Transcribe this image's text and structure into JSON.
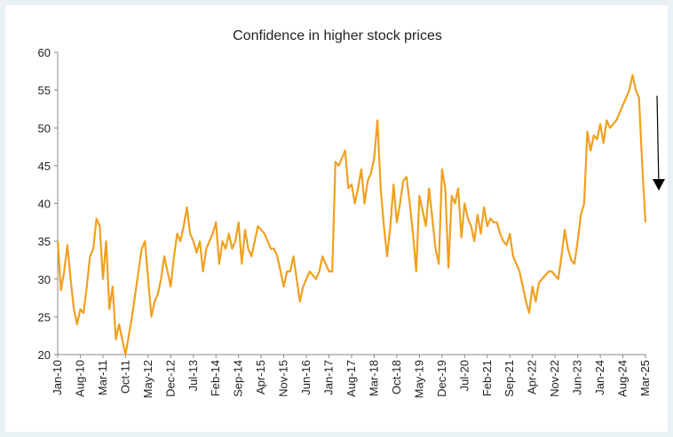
{
  "chart_data": {
    "type": "line",
    "title": "Confidence in higher stock prices",
    "categories": [
      "Jan-10",
      null,
      null,
      null,
      null,
      null,
      null,
      "Aug-10",
      null,
      null,
      null,
      null,
      null,
      null,
      "Mar-11",
      null,
      null,
      null,
      null,
      null,
      null,
      "Oct-11",
      null,
      null,
      null,
      null,
      null,
      null,
      "May-12",
      null,
      null,
      null,
      null,
      null,
      null,
      "Dec-12",
      null,
      null,
      null,
      null,
      null,
      null,
      "Jul-13",
      null,
      null,
      null,
      null,
      null,
      null,
      "Feb-14",
      null,
      null,
      null,
      null,
      null,
      null,
      "Sep-14",
      null,
      null,
      null,
      null,
      null,
      null,
      "Apr-15",
      null,
      null,
      null,
      null,
      null,
      null,
      "Nov-15",
      null,
      null,
      null,
      null,
      null,
      null,
      "Jun-16",
      null,
      null,
      null,
      null,
      null,
      null,
      "Jan-17",
      null,
      null,
      null,
      null,
      null,
      null,
      "Aug-17",
      null,
      null,
      null,
      null,
      null,
      null,
      "Mar-18",
      null,
      null,
      null,
      null,
      null,
      null,
      "Oct-18",
      null,
      null,
      null,
      null,
      null,
      null,
      "May-19",
      null,
      null,
      null,
      null,
      null,
      null,
      "Dec-19",
      null,
      null,
      null,
      null,
      null,
      null,
      "Jul-20",
      null,
      null,
      null,
      null,
      null,
      null,
      "Feb-21",
      null,
      null,
      null,
      null,
      null,
      null,
      "Sep-21",
      null,
      null,
      null,
      null,
      null,
      null,
      "Apr-22",
      null,
      null,
      null,
      null,
      null,
      null,
      "Nov-22",
      null,
      null,
      null,
      null,
      null,
      null,
      "Jun-23",
      null,
      null,
      null,
      null,
      null,
      null,
      "Jan-24",
      null,
      null,
      null,
      null,
      null,
      null,
      "Aug-24",
      null,
      null,
      null,
      null,
      null,
      null,
      "Mar-25"
    ],
    "values": [
      35,
      28.5,
      31,
      34.5,
      30,
      26,
      24,
      26,
      25.5,
      29,
      33,
      34,
      38,
      37,
      30,
      35,
      26,
      29,
      22,
      24,
      22,
      20,
      22.5,
      25,
      28,
      31,
      34,
      35,
      30,
      25,
      27,
      28,
      30,
      33,
      31,
      29,
      33,
      36,
      35,
      37,
      39.5,
      36,
      35,
      33.5,
      35,
      31,
      34,
      35,
      36,
      37.5,
      32,
      35,
      34,
      36,
      34,
      35,
      37.5,
      32,
      36.5,
      34,
      33,
      35,
      37,
      36.5,
      36,
      35,
      34,
      34,
      33,
      31,
      29,
      31,
      31,
      33,
      30,
      27,
      29,
      30,
      31,
      30.5,
      30,
      31,
      33,
      32,
      31,
      31,
      45.5,
      45,
      46,
      47,
      42,
      42.5,
      40,
      42,
      44.5,
      40,
      43,
      44,
      46,
      51,
      42,
      37,
      33,
      37,
      42.5,
      37.5,
      40,
      43,
      43.5,
      40,
      36,
      31,
      41,
      39,
      37,
      42,
      38,
      34,
      32,
      44.5,
      42,
      31.5,
      41,
      40,
      42,
      35.5,
      40,
      38,
      37,
      35,
      38.5,
      36,
      39.5,
      37,
      38,
      37.5,
      37.5,
      36,
      35,
      34.5,
      36,
      33,
      32,
      31,
      29,
      27,
      25.5,
      29,
      27,
      29.5,
      30,
      30.5,
      31,
      31,
      30.5,
      30,
      33,
      36.5,
      34,
      32.5,
      32,
      35,
      38.5,
      40,
      49.5,
      47,
      49,
      48.5,
      50.5,
      48,
      51,
      50,
      50.5,
      51,
      52,
      53,
      54,
      55,
      57,
      55,
      54,
      45,
      37.5
    ],
    "color": "#f0a020",
    "ylim": [
      20,
      60
    ],
    "yticks": [
      20,
      25,
      30,
      35,
      40,
      45,
      50,
      55,
      60
    ]
  }
}
